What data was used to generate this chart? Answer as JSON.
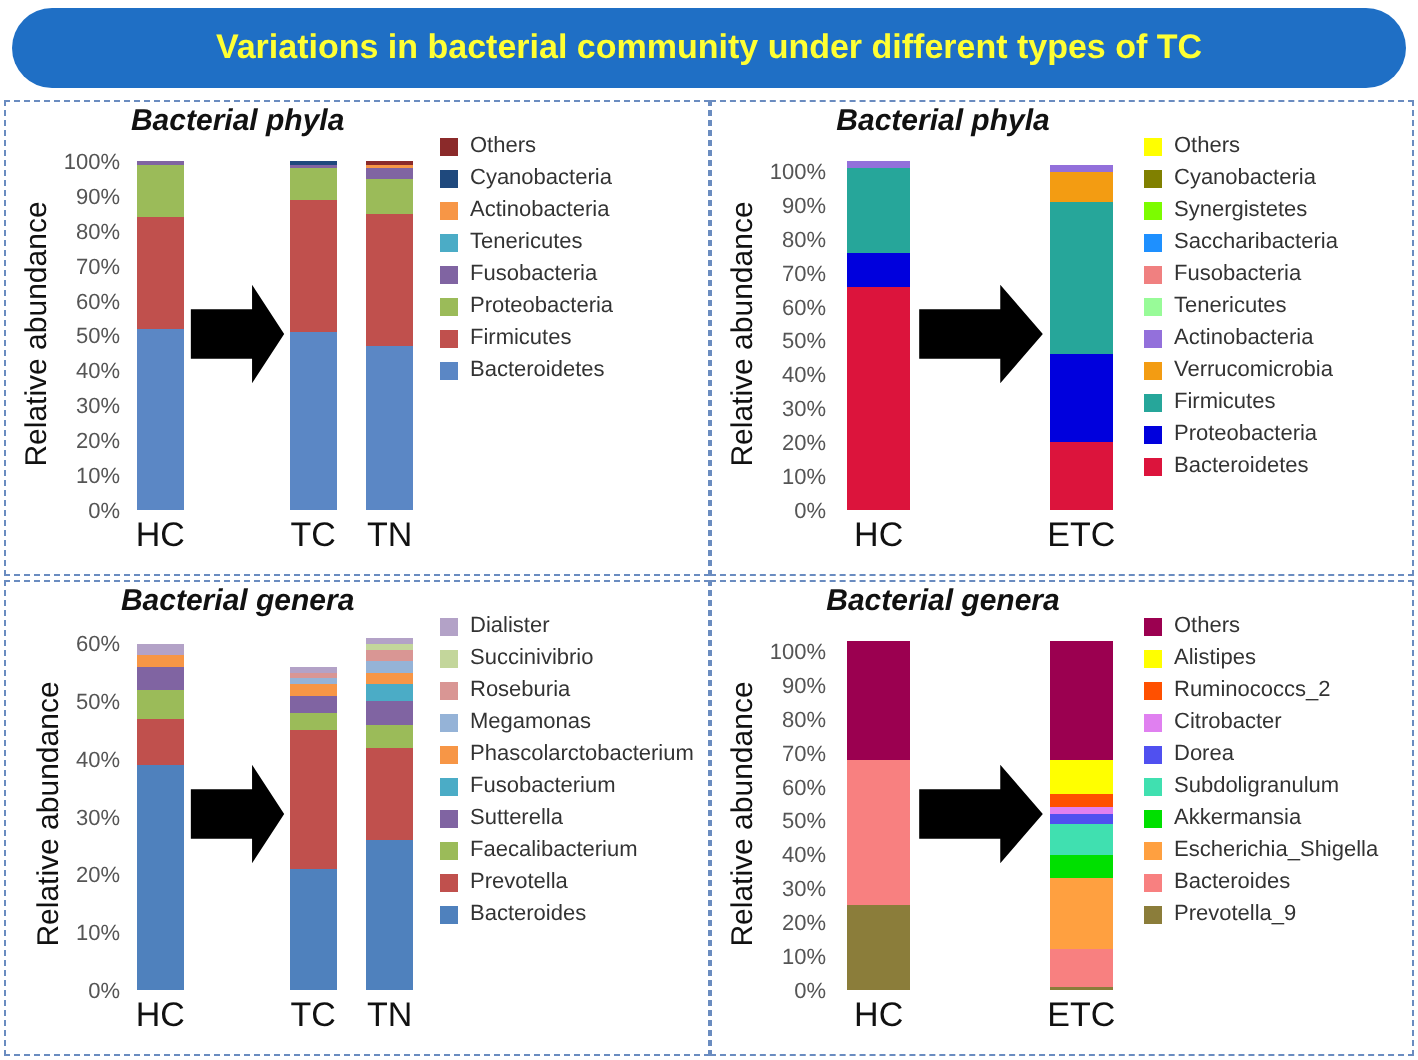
{
  "chart_data": [
    {
      "type": "bar",
      "title": "Bacterial phyla",
      "annotations": [
        "Variations in bacterial community under different types of TC"
      ],
      "ylabel": "Relative abundance",
      "categories": [
        "HC",
        null,
        "TC",
        "TN"
      ],
      "stacked": true,
      "legend": "right",
      "ylim": [
        0,
        101
      ],
      "yticks": [
        {
          "value": 0,
          "label": "0%"
        },
        {
          "value": 10,
          "label": "10%"
        },
        {
          "value": 20,
          "label": "20%"
        },
        {
          "value": 30,
          "label": "30%"
        },
        {
          "value": 40,
          "label": "40%"
        },
        {
          "value": 50,
          "label": "50%"
        },
        {
          "value": 60,
          "label": "60%"
        },
        {
          "value": 70,
          "label": "70%"
        },
        {
          "value": 80,
          "label": "80%"
        },
        {
          "value": 90,
          "label": "90%"
        },
        {
          "value": 100,
          "label": "100%"
        }
      ],
      "series": [
        {
          "name": "Bacteroidetes",
          "color": "#5b87c5",
          "values": [
            52,
            null,
            51,
            47
          ]
        },
        {
          "name": "Firmicutes",
          "color": "#c0504d",
          "values": [
            32,
            null,
            38,
            38
          ]
        },
        {
          "name": "Proteobacteria",
          "color": "#9bbb59",
          "values": [
            15,
            null,
            9,
            10
          ]
        },
        {
          "name": "Fusobacteria",
          "color": "#8064a2",
          "values": [
            1,
            null,
            1,
            3
          ]
        },
        {
          "name": "Tenericutes",
          "color": "#4bacc6",
          "values": [
            0,
            null,
            0,
            0
          ]
        },
        {
          "name": "Actinobacteria",
          "color": "#f79646",
          "values": [
            0,
            null,
            0,
            1
          ]
        },
        {
          "name": "Cyanobacteria",
          "color": "#1f497d",
          "values": [
            0,
            null,
            1,
            0
          ]
        },
        {
          "name": "Others",
          "color": "#8b2a2a",
          "values": [
            0,
            null,
            0,
            1
          ]
        }
      ]
    },
    {
      "type": "bar",
      "title": "Bacterial phyla",
      "ylabel": "Relative abundance",
      "categories": [
        "HC",
        null,
        "ETC"
      ],
      "stacked": true,
      "legend": "right",
      "ylim": [
        0,
        104
      ],
      "yticks": [
        {
          "value": 0,
          "label": "0%"
        },
        {
          "value": 10,
          "label": "10%"
        },
        {
          "value": 20,
          "label": "20%"
        },
        {
          "value": 30,
          "label": "30%"
        },
        {
          "value": 40,
          "label": "40%"
        },
        {
          "value": 50,
          "label": "50%"
        },
        {
          "value": 60,
          "label": "60%"
        },
        {
          "value": 70,
          "label": "70%"
        },
        {
          "value": 80,
          "label": "80%"
        },
        {
          "value": 90,
          "label": "90%"
        },
        {
          "value": 100,
          "label": "100%"
        }
      ],
      "series": [
        {
          "name": "Bacteroidetes",
          "color": "#dc143c",
          "values": [
            66,
            null,
            20
          ]
        },
        {
          "name": "Proteobacteria",
          "color": "#0000dd",
          "values": [
            10,
            null,
            26
          ]
        },
        {
          "name": "Firmicutes",
          "color": "#26a69a",
          "values": [
            25,
            null,
            45
          ]
        },
        {
          "name": "Verrucomicrobia",
          "color": "#f39c12",
          "values": [
            0,
            null,
            9
          ]
        },
        {
          "name": "Actinobacteria",
          "color": "#9370db",
          "values": [
            2,
            null,
            2
          ]
        },
        {
          "name": "Tenericutes",
          "color": "#98fb98",
          "values": [
            0,
            null,
            0
          ]
        },
        {
          "name": "Fusobacteria",
          "color": "#f08080",
          "values": [
            0,
            null,
            0
          ]
        },
        {
          "name": "Saccharibacteria",
          "color": "#1e90ff",
          "values": [
            0,
            null,
            0
          ]
        },
        {
          "name": "Synergistetes",
          "color": "#7cfc00",
          "values": [
            0,
            null,
            0
          ]
        },
        {
          "name": "Cyanobacteria",
          "color": "#808000",
          "values": [
            0,
            null,
            0
          ]
        },
        {
          "name": "Others",
          "color": "#ffff00",
          "values": [
            0,
            null,
            0
          ]
        }
      ]
    },
    {
      "type": "bar",
      "title": "Bacterial genera",
      "ylabel": "Relative abundance",
      "categories": [
        "HC",
        null,
        "TC",
        "TN"
      ],
      "stacked": true,
      "legend": "right",
      "ylim": [
        0,
        61
      ],
      "yticks": [
        {
          "value": 0,
          "label": "0%"
        },
        {
          "value": 10,
          "label": "10%"
        },
        {
          "value": 20,
          "label": "20%"
        },
        {
          "value": 30,
          "label": "30%"
        },
        {
          "value": 40,
          "label": "40%"
        },
        {
          "value": 50,
          "label": "50%"
        },
        {
          "value": 60,
          "label": "60%"
        }
      ],
      "series": [
        {
          "name": "Bacteroides",
          "color": "#4f81bd",
          "values": [
            39,
            null,
            21,
            26
          ]
        },
        {
          "name": "Prevotella",
          "color": "#c0504d",
          "values": [
            8,
            null,
            24,
            16
          ]
        },
        {
          "name": "Faecalibacterium",
          "color": "#9bbb59",
          "values": [
            5,
            null,
            3,
            4
          ]
        },
        {
          "name": "Sutterella",
          "color": "#8064a2",
          "values": [
            4,
            null,
            3,
            4
          ]
        },
        {
          "name": "Fusobacterium",
          "color": "#4bacc6",
          "values": [
            0,
            null,
            0,
            3
          ]
        },
        {
          "name": "Phascolarctobacterium",
          "color": "#f79646",
          "values": [
            2,
            null,
            2,
            2
          ]
        },
        {
          "name": "Megamonas",
          "color": "#95b3d7",
          "values": [
            0,
            null,
            1,
            2
          ]
        },
        {
          "name": "Roseburia",
          "color": "#d99694",
          "values": [
            0,
            null,
            1,
            2
          ]
        },
        {
          "name": "Succinivibrio",
          "color": "#c3d69b",
          "values": [
            0,
            null,
            0,
            1
          ]
        },
        {
          "name": "Dialister",
          "color": "#b3a2c7",
          "values": [
            2,
            null,
            1,
            1
          ]
        }
      ]
    },
    {
      "type": "bar",
      "title": "Bacterial genera",
      "ylabel": "Relative abundance",
      "categories": [
        "HC",
        null,
        "ETC"
      ],
      "stacked": true,
      "legend": "right",
      "ylim": [
        0,
        104
      ],
      "yticks": [
        {
          "value": 0,
          "label": "0%"
        },
        {
          "value": 10,
          "label": "10%"
        },
        {
          "value": 20,
          "label": "20%"
        },
        {
          "value": 30,
          "label": "30%"
        },
        {
          "value": 40,
          "label": "40%"
        },
        {
          "value": 50,
          "label": "50%"
        },
        {
          "value": 60,
          "label": "60%"
        },
        {
          "value": 70,
          "label": "70%"
        },
        {
          "value": 80,
          "label": "80%"
        },
        {
          "value": 90,
          "label": "90%"
        },
        {
          "value": 100,
          "label": "100%"
        }
      ],
      "series": [
        {
          "name": "Prevotella_9",
          "color": "#8b7d3a",
          "values": [
            25,
            null,
            1
          ]
        },
        {
          "name": "Bacteroides",
          "color": "#f88080",
          "values": [
            43,
            null,
            11
          ]
        },
        {
          "name": "Escherichia_Shigella",
          "color": "#ffa040",
          "values": [
            0,
            null,
            21
          ]
        },
        {
          "name": "Akkermansia",
          "color": "#00e000",
          "values": [
            0,
            null,
            7
          ]
        },
        {
          "name": "Subdoligranulum",
          "color": "#40e0b0",
          "values": [
            0,
            null,
            9
          ]
        },
        {
          "name": "Dorea",
          "color": "#5050f0",
          "values": [
            0,
            null,
            3
          ]
        },
        {
          "name": "Citrobacter",
          "color": "#e080f0",
          "values": [
            0,
            null,
            2
          ]
        },
        {
          "name": "Ruminococcs_2",
          "color": "#ff5000",
          "values": [
            0,
            null,
            4
          ]
        },
        {
          "name": "Alistipes",
          "color": "#ffff00",
          "values": [
            0,
            null,
            10
          ]
        },
        {
          "name": "Others",
          "color": "#9b0050",
          "values": [
            35,
            null,
            35
          ]
        }
      ]
    }
  ]
}
